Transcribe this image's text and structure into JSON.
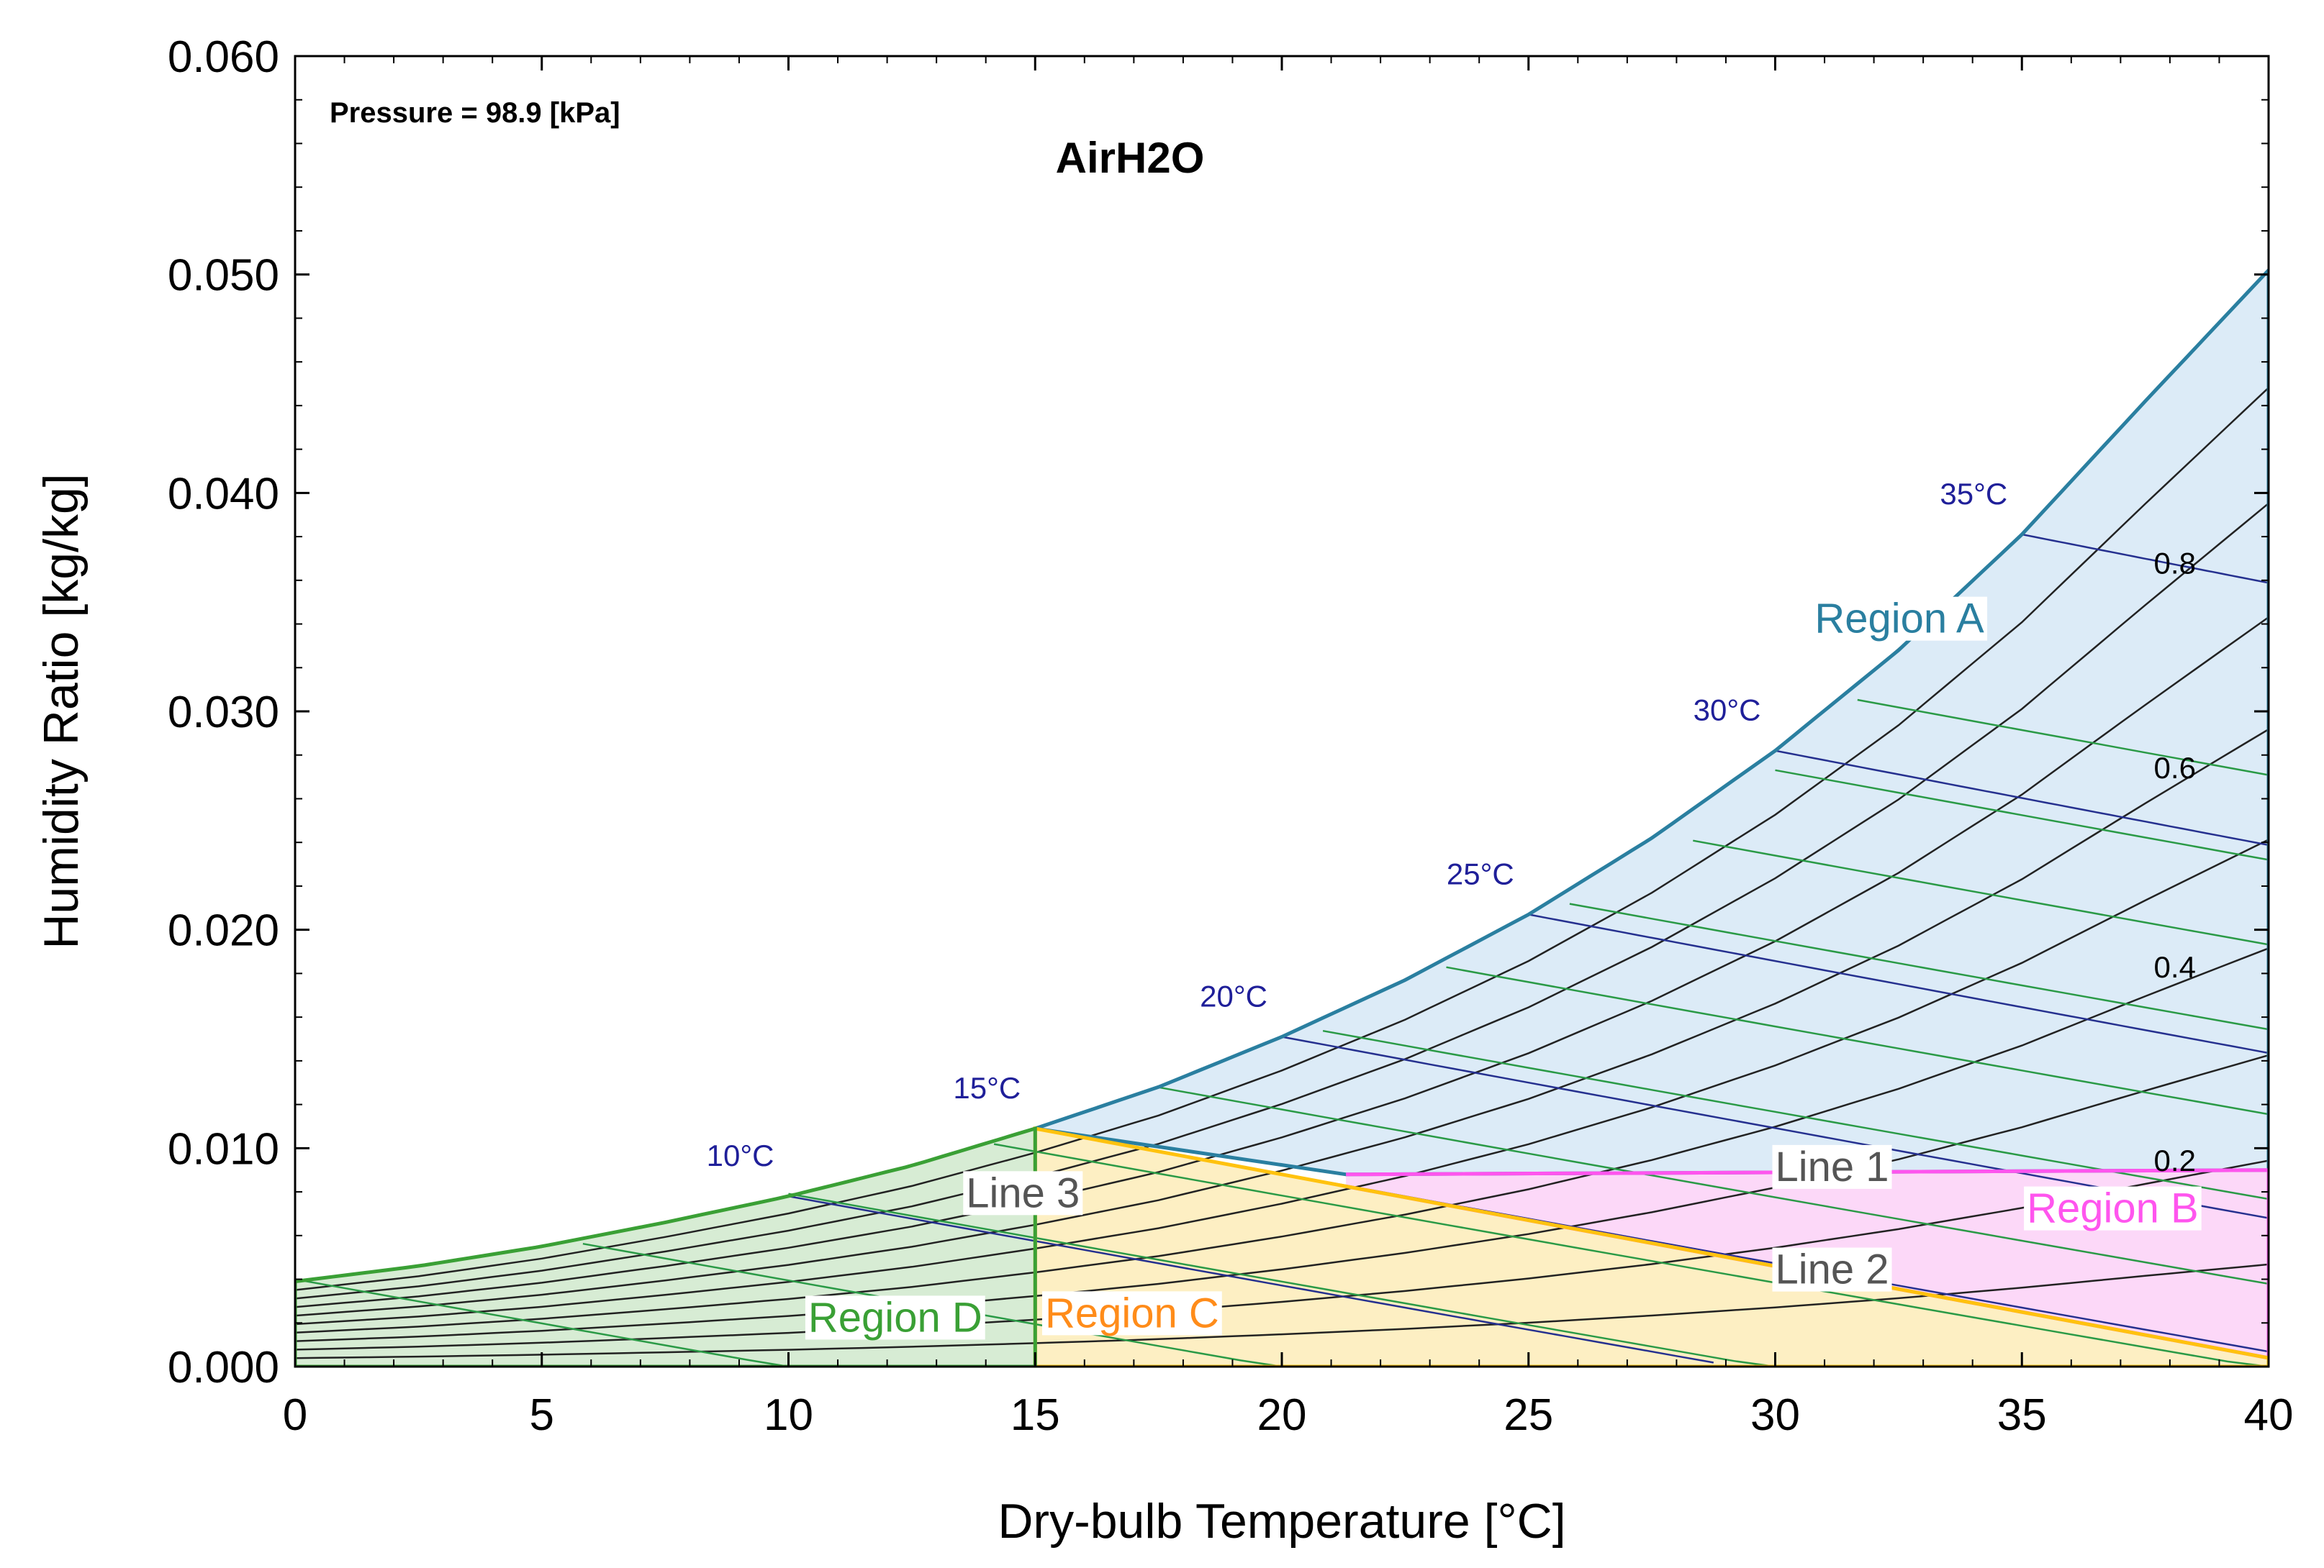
{
  "chart_data": {
    "type": "line",
    "title": "AirH2O",
    "annotation": "Pressure = 98.9 [kPa]",
    "pressure_kPa": 98.9,
    "xlabel": "Dry-bulb Temperature [°C]",
    "ylabel": "Humidity Ratio [kg/kg]",
    "xlim": [
      0,
      40
    ],
    "ylim": [
      0,
      0.06
    ],
    "x_ticks": [
      0,
      5,
      10,
      15,
      20,
      25,
      30,
      35,
      40
    ],
    "x_tick_labels": [
      "0",
      "5",
      "10",
      "15",
      "20",
      "25",
      "30",
      "35",
      "40"
    ],
    "y_ticks": [
      0,
      0.01,
      0.02,
      0.03,
      0.04,
      0.05,
      0.06
    ],
    "y_tick_labels": [
      "0.000",
      "0.010",
      "0.020",
      "0.030",
      "0.040",
      "0.050",
      "0.060"
    ],
    "saturation_curve": {
      "x": [
        0,
        2.5,
        5,
        7.5,
        10,
        12.5,
        15,
        17.5,
        20,
        22.5,
        25,
        27.5,
        30,
        32.5,
        35,
        37.5,
        40
      ],
      "y": [
        0.0039,
        0.0046,
        0.0055,
        0.0066,
        0.0078,
        0.0092,
        0.0109,
        0.0128,
        0.0151,
        0.0177,
        0.0207,
        0.0242,
        0.0282,
        0.0328,
        0.0381,
        0.0442,
        0.0502
      ]
    },
    "relative_humidity": {
      "values": [
        0.1,
        0.2,
        0.3,
        0.4,
        0.5,
        0.6,
        0.7,
        0.8,
        0.9
      ],
      "labels": [
        "0.2",
        "0.4",
        "0.6",
        "0.8"
      ],
      "label_values": [
        0.2,
        0.4,
        0.6,
        0.8
      ]
    },
    "wet_bulb_lines": {
      "labels": [
        "10°C",
        "15°C",
        "20°C",
        "25°C",
        "30°C",
        "35°C"
      ],
      "values": [
        10,
        15,
        20,
        25,
        30,
        35
      ]
    },
    "enthalpy_lines": {
      "values": [
        10,
        20,
        30,
        40,
        50,
        60,
        70,
        80,
        90,
        100,
        110
      ]
    },
    "regions": [
      {
        "name": "Region A",
        "color": "#2a7fa0",
        "fill": "#dcebf7"
      },
      {
        "name": "Region B",
        "color": "#ff55ee",
        "fill": "#fcd8f8"
      },
      {
        "name": "Region C",
        "color": "#ff8c1a",
        "fill": "#fdefc3"
      },
      {
        "name": "Region D",
        "color": "#3aa035",
        "fill": "#d7ecd4"
      }
    ],
    "lines": [
      {
        "name": "Line 1",
        "from": [
          21.3,
          0.0088
        ],
        "to": [
          40,
          0.009
        ]
      },
      {
        "name": "Line 2",
        "from": [
          15,
          0.0109
        ],
        "to": [
          40,
          0.0004
        ]
      },
      {
        "name": "Line 3",
        "from": [
          15,
          0.0109
        ],
        "to": [
          15,
          0.0
        ]
      }
    ]
  }
}
